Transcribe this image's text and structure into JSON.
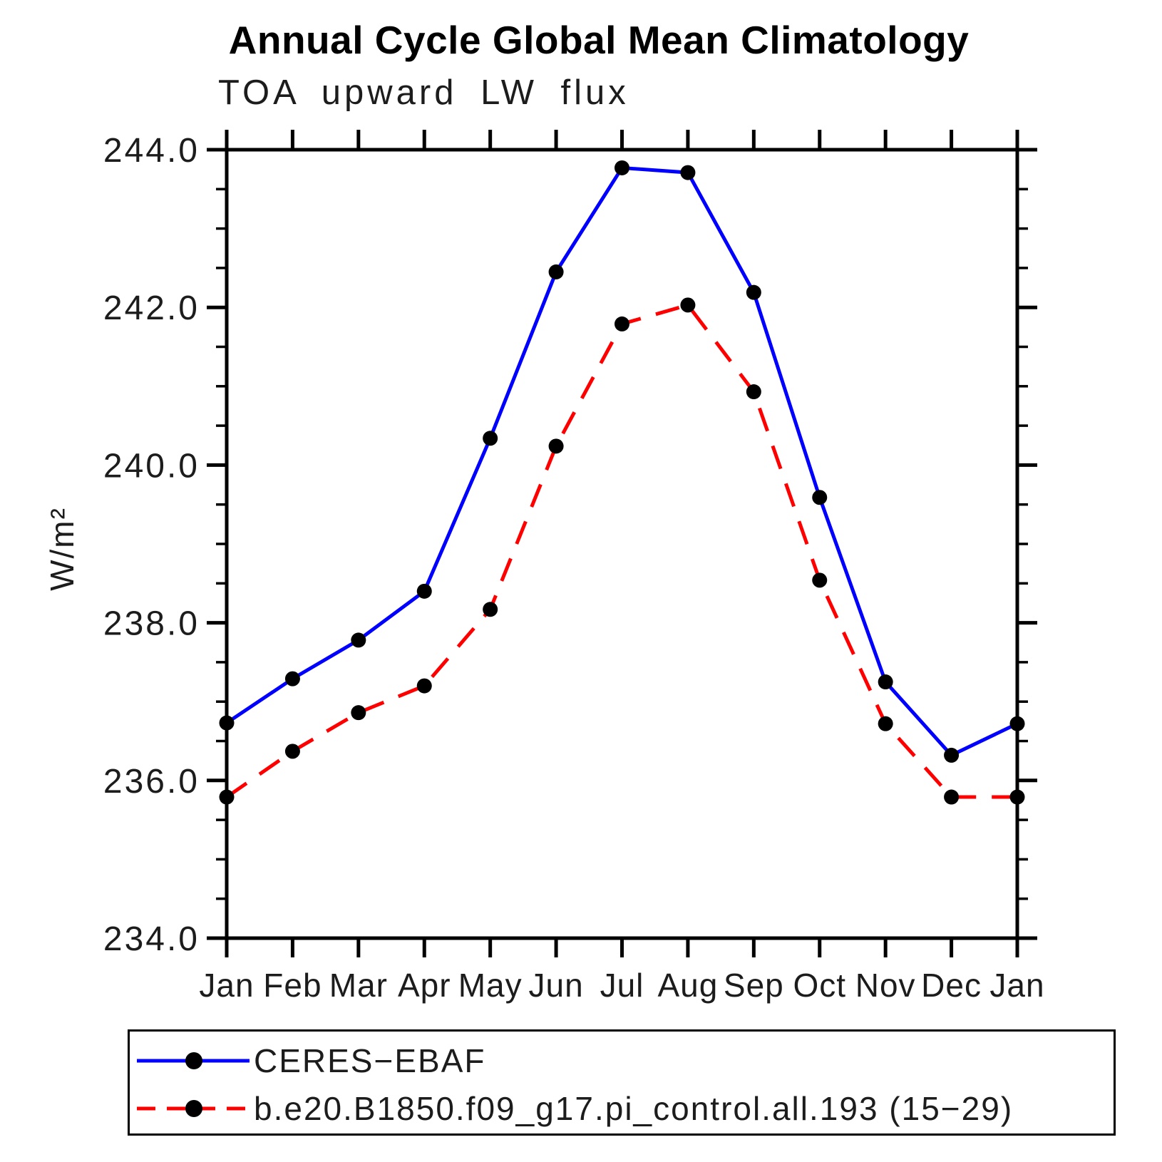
{
  "page": {
    "background": "#ffffff"
  },
  "chart_data": {
    "type": "line",
    "title": "Annual Cycle Global Mean Climatology",
    "subtitle": "TOA upward LW flux",
    "ylabel": "W/m²",
    "xlabel": "",
    "categories": [
      "Jan",
      "Feb",
      "Mar",
      "Apr",
      "May",
      "Jun",
      "Jul",
      "Aug",
      "Sep",
      "Oct",
      "Nov",
      "Dec",
      "Jan"
    ],
    "ylim": [
      234.0,
      244.0
    ],
    "y_major_step": 2.0,
    "y_minor_step": 0.5,
    "y_tick_labels": [
      "234.0",
      "236.0",
      "238.0",
      "240.0",
      "242.0",
      "244.0"
    ],
    "grid": false,
    "legend_position": "bottom-box",
    "axis_color": "#000000",
    "series": [
      {
        "name": "CERES−EBAF",
        "line_color": "#0000ff",
        "line_style": "solid",
        "marker": "circle",
        "marker_color": "#000000",
        "values": [
          236.73,
          237.29,
          237.78,
          238.4,
          240.34,
          242.45,
          243.77,
          243.71,
          242.19,
          239.59,
          237.25,
          236.32,
          236.72
        ]
      },
      {
        "name": "b.e20.B1850.f09_g17.pi_control.all.193 (15−29)",
        "line_color": "#ff0000",
        "line_style": "dashed",
        "marker": "circle",
        "marker_color": "#000000",
        "values": [
          235.79,
          236.37,
          236.86,
          237.2,
          238.17,
          240.24,
          241.79,
          242.03,
          240.93,
          238.54,
          236.72,
          235.79,
          235.79
        ]
      }
    ]
  }
}
